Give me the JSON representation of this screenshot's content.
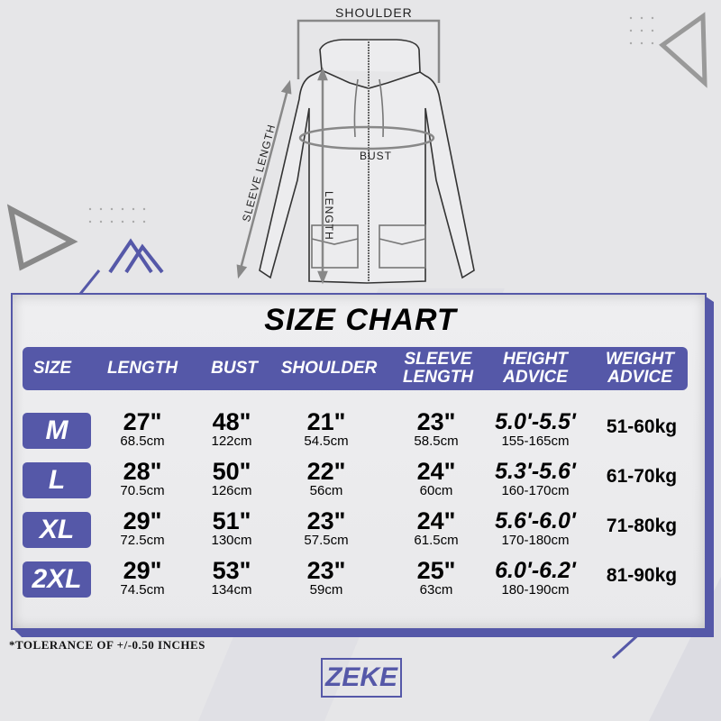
{
  "diagram": {
    "shoulder_label": "SHOULDER",
    "bust_label": "BUST",
    "length_label": "LENGTH",
    "sleeve_label": "SLEEVE LENGTH"
  },
  "title": "SIZE CHART",
  "headers": [
    "SIZE",
    "LENGTH",
    "BUST",
    "SHOULDER",
    "SLEEVE LENGTH",
    "HEIGHT ADVICE",
    "WEIGHT ADVICE"
  ],
  "header_lines": {
    "sleeve": [
      "SLEEVE",
      "LENGTH"
    ],
    "height": [
      "HEIGHT",
      "ADVICE"
    ],
    "weight": [
      "WEIGHT",
      "ADVICE"
    ]
  },
  "rows": [
    {
      "size": "M",
      "length_in": "27\"",
      "length_cm": "68.5cm",
      "bust_in": "48\"",
      "bust_cm": "122cm",
      "shoulder_in": "21\"",
      "shoulder_cm": "54.5cm",
      "sleeve_in": "23\"",
      "sleeve_cm": "58.5cm",
      "height_ft": "5.0'-5.5'",
      "height_cm": "155-165cm",
      "weight": "51-60kg"
    },
    {
      "size": "L",
      "length_in": "28\"",
      "length_cm": "70.5cm",
      "bust_in": "50\"",
      "bust_cm": "126cm",
      "shoulder_in": "22\"",
      "shoulder_cm": "56cm",
      "sleeve_in": "24\"",
      "sleeve_cm": "60cm",
      "height_ft": "5.3'-5.6'",
      "height_cm": "160-170cm",
      "weight": "61-70kg"
    },
    {
      "size": "XL",
      "length_in": "29\"",
      "length_cm": "72.5cm",
      "bust_in": "51\"",
      "bust_cm": "130cm",
      "shoulder_in": "23\"",
      "shoulder_cm": "57.5cm",
      "sleeve_in": "24\"",
      "sleeve_cm": "61.5cm",
      "height_ft": "5.6'-6.0'",
      "height_cm": "170-180cm",
      "weight": "71-80kg"
    },
    {
      "size": "2XL",
      "length_in": "29\"",
      "length_cm": "74.5cm",
      "bust_in": "53\"",
      "bust_cm": "134cm",
      "shoulder_in": "23\"",
      "shoulder_cm": "59cm",
      "sleeve_in": "25\"",
      "sleeve_cm": "63cm",
      "height_ft": "6.0'-6.2'",
      "height_cm": "180-190cm",
      "weight": "81-90kg"
    }
  ],
  "note": "*TOLERANCE OF +/-0.50 INCHES",
  "brand": "ZEKE",
  "colors": {
    "accent": "#5558a8",
    "background": "#e6e6e8"
  }
}
